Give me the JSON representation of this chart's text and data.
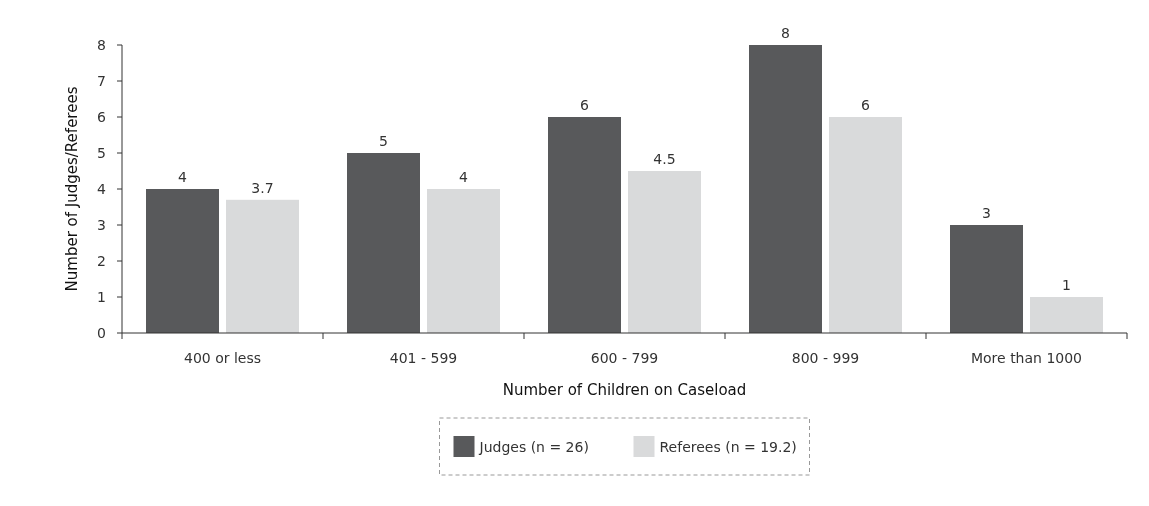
{
  "chart_data": {
    "type": "bar",
    "xlabel": "Number of Children on Caseload",
    "ylabel": "Number of Judges/Referees",
    "categories": [
      "400 or less",
      "401 - 599",
      "600 - 799",
      "800 - 999",
      "More than 1000"
    ],
    "series": [
      {
        "name": "Judges (n = 26)",
        "color": "#58595b",
        "values": [
          4,
          5,
          6,
          8,
          3
        ]
      },
      {
        "name": "Referees (n = 19.2)",
        "color": "#d9dadb",
        "values": [
          3.7,
          4,
          4.5,
          6,
          1
        ]
      }
    ],
    "ylim": [
      0,
      8
    ],
    "yticks": [
      0,
      1,
      2,
      3,
      4,
      5,
      6,
      7,
      8
    ],
    "grid": false,
    "legend": "bottom",
    "data_labels": true
  }
}
